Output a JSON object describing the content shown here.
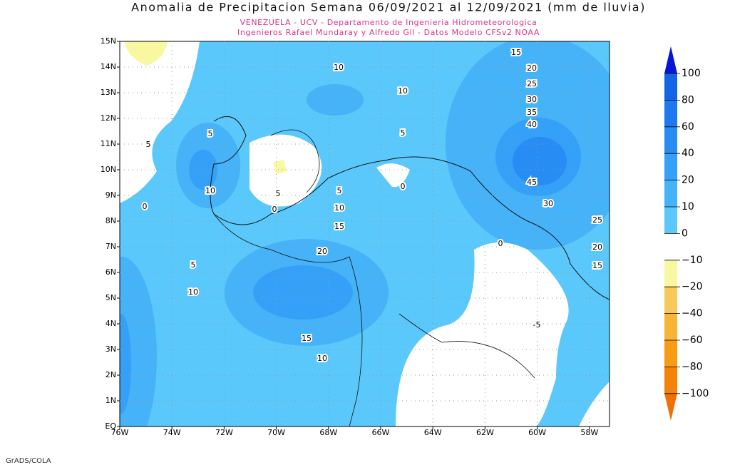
{
  "title": "Anomalia de Precipitacion Semana 06/09/2021 al 12/09/2021 (mm de lluvia)",
  "subtitle": [
    "VENEZUELA - UCV - Departamento de Ingenieria Hidrometeorologica",
    "Ingenieros Rafael Mundaray y Alfredo Gil - Datos Modelo CFSv2 NOAA"
  ],
  "map": {
    "x_labels": [
      "76W",
      "74W",
      "72W",
      "70W",
      "68W",
      "66W",
      "64W",
      "62W",
      "60W",
      "58W"
    ],
    "y_labels": [
      "EQ",
      "1N",
      "2N",
      "3N",
      "4N",
      "5N",
      "6N",
      "7N",
      "8N",
      "9N",
      "10N",
      "11N",
      "12N",
      "13N",
      "14N",
      "15N"
    ],
    "contour_labels": [
      "15",
      "20",
      "25",
      "30",
      "35",
      "40",
      "45",
      "30",
      "25",
      "20",
      "15",
      "10",
      "10",
      "5",
      "5",
      "10",
      "5",
      "0",
      "5",
      "0",
      "0",
      "5",
      "10",
      "15",
      "20",
      "5",
      "10",
      "15",
      "10",
      "0",
      "-5"
    ]
  },
  "colorbar": {
    "labels": [
      "100",
      "80",
      "60",
      "40",
      "20",
      "10",
      "0",
      "−10",
      "−20",
      "−40",
      "−60",
      "−80",
      "−100"
    ],
    "colors": [
      "#0a14d8",
      "#1464e6",
      "#1e78f0",
      "#288cf5",
      "#35a0f7",
      "#46b2f8",
      "#5ac8fa",
      "#ffffff",
      "#f8f8a0",
      "#f8c858",
      "#f8b434",
      "#f89c14",
      "#f48408",
      "#f07000"
    ]
  },
  "footer": "GrADS/COLA"
}
